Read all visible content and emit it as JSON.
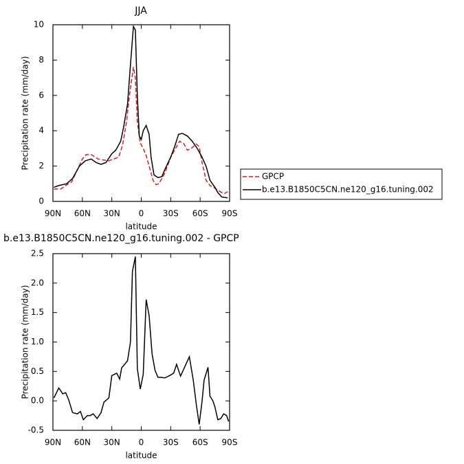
{
  "chart_data": [
    {
      "type": "line",
      "title": "JJA",
      "xlabel": "latitude",
      "ylabel": "Precipitation rate (mm/day)",
      "xlim": [
        90,
        -90
      ],
      "xticks": [
        {
          "value": 90,
          "label": "90N"
        },
        {
          "value": 60,
          "label": "60N"
        },
        {
          "value": 30,
          "label": "30N"
        },
        0,
        {
          "value": -30,
          "label": "30S"
        },
        {
          "value": -60,
          "label": "60S"
        },
        {
          "value": -90,
          "label": "90S"
        }
      ],
      "ylim": [
        0,
        10
      ],
      "yticks": [
        0,
        2,
        4,
        6,
        8,
        10
      ],
      "series": [
        {
          "name": "GPCP",
          "color": "#e0191e",
          "line_style": "dashed",
          "x": [
            89,
            82,
            77,
            71,
            65,
            60,
            56,
            51,
            44,
            39,
            33,
            28,
            23,
            19,
            15,
            12,
            8,
            6,
            4,
            1,
            -2,
            -5,
            -9,
            -12,
            -15,
            -18,
            -24,
            -30,
            -35,
            -39,
            -43,
            -47,
            -51,
            -56,
            -59,
            -62,
            -66,
            -70,
            -75,
            -82,
            -85,
            -88
          ],
          "values": [
            0.7,
            0.7,
            0.9,
            1.1,
            1.8,
            2.4,
            2.65,
            2.65,
            2.4,
            2.35,
            2.3,
            2.4,
            2.5,
            3.2,
            4.5,
            6.0,
            7.6,
            7.0,
            4.5,
            3.3,
            3.0,
            2.6,
            1.8,
            1.2,
            0.95,
            1.0,
            1.6,
            2.5,
            3.0,
            3.4,
            3.3,
            2.9,
            3.0,
            3.25,
            3.1,
            2.2,
            1.2,
            0.9,
            0.75,
            0.5,
            0.45,
            0.55
          ]
        },
        {
          "name": "b.e13.B1850C5CN.ne120_g16.tuning.002",
          "color": "#000000",
          "line_style": "solid",
          "x": [
            89,
            84,
            76,
            70,
            63,
            57,
            51,
            46,
            41,
            36,
            30,
            26,
            21,
            18,
            14,
            12,
            8,
            6,
            4,
            2,
            0,
            -2,
            -5,
            -8,
            -10,
            -13,
            -17,
            -21,
            -24,
            -30,
            -34,
            -38,
            -42,
            -47,
            -52,
            -57,
            -62,
            -66,
            -70,
            -75,
            -78,
            -82,
            -88
          ],
          "values": [
            0.8,
            0.9,
            1.0,
            1.3,
            2.0,
            2.3,
            2.4,
            2.2,
            2.1,
            2.2,
            2.7,
            2.9,
            3.4,
            4.2,
            5.5,
            7.0,
            9.9,
            9.7,
            6.0,
            3.7,
            3.5,
            4.0,
            4.3,
            3.8,
            2.5,
            1.5,
            1.35,
            1.4,
            1.8,
            2.5,
            3.1,
            3.8,
            3.85,
            3.7,
            3.4,
            3.0,
            2.5,
            2.0,
            1.2,
            0.8,
            0.5,
            0.25,
            0.2
          ]
        }
      ]
    },
    {
      "type": "line",
      "title": "b.e13.B1850C5CN.ne120_g16.tuning.002 - GPCP",
      "xlabel": "latitude",
      "ylabel": "Precipitation rate (mm/day)",
      "xlim": [
        90,
        -90
      ],
      "xticks": [
        {
          "value": 90,
          "label": "90N"
        },
        {
          "value": 60,
          "label": "60N"
        },
        {
          "value": 30,
          "label": "30N"
        },
        0,
        {
          "value": -30,
          "label": "30S"
        },
        {
          "value": -60,
          "label": "60S"
        },
        {
          "value": -90,
          "label": "90S"
        }
      ],
      "ylim": [
        -0.5,
        2.5
      ],
      "yticks": [
        -0.5,
        {
          "value": 0,
          "label": "0.0"
        },
        0.5,
        {
          "value": 1,
          "label": "1.0"
        },
        1.5,
        {
          "value": 2,
          "label": "2.0"
        },
        2.5
      ],
      "color": "#000000",
      "x": [
        89,
        84,
        80,
        77,
        74,
        70,
        65,
        62,
        59,
        55,
        52,
        49,
        45,
        41,
        38,
        33,
        30,
        25,
        22,
        20,
        18,
        14,
        11,
        9,
        6,
        4,
        1,
        -2,
        -5,
        -8,
        -11,
        -14,
        -17,
        -20,
        -24,
        -29,
        -33,
        -36,
        -40,
        -43,
        -49,
        -53,
        -56,
        -59,
        -62,
        -64,
        -68,
        -70,
        -73,
        -75,
        -78,
        -81,
        -84,
        -87,
        -89
      ],
      "values": [
        0.05,
        0.22,
        0.12,
        0.14,
        0.02,
        -0.2,
        -0.22,
        -0.18,
        -0.32,
        -0.25,
        -0.25,
        -0.22,
        -0.3,
        -0.2,
        -0.02,
        0.05,
        0.43,
        0.47,
        0.37,
        0.56,
        0.6,
        0.68,
        1.0,
        2.2,
        2.45,
        0.55,
        0.2,
        0.45,
        1.72,
        1.45,
        0.8,
        0.52,
        0.4,
        0.4,
        0.39,
        0.43,
        0.47,
        0.62,
        0.42,
        0.53,
        0.75,
        0.35,
        -0.05,
        -0.4,
        0.0,
        0.35,
        0.57,
        0.08,
        0.0,
        -0.1,
        -0.32,
        -0.3,
        -0.22,
        -0.25,
        -0.35
      ]
    }
  ]
}
